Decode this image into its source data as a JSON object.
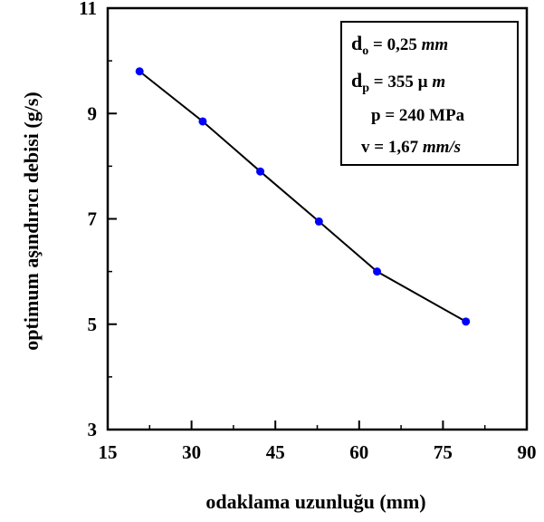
{
  "chart_data": {
    "type": "line",
    "title": "",
    "xlabel": "odaklama uzunluğu (mm)",
    "ylabel": "optimum aşındırıcı debisi (g/s)",
    "xlim": [
      15,
      90
    ],
    "ylim": [
      3,
      11
    ],
    "xticks": [
      "15",
      "30",
      "45",
      "60",
      "75",
      "90"
    ],
    "yticks": [
      "3",
      "5",
      "7",
      "9",
      "11"
    ],
    "grid": false,
    "legend_position": "top-right",
    "series": [
      {
        "x": [
          20.7,
          32,
          42.3,
          52.8,
          63.2,
          79.1
        ],
        "y": [
          9.8,
          8.85,
          7.9,
          6.95,
          6.0,
          5.05
        ],
        "marker_color": "#0000ff",
        "line_color": "#000000"
      }
    ],
    "annotation_box": [
      {
        "label": "d",
        "sub": "o",
        "rest": " = 0,25 ",
        "unit": "mm"
      },
      {
        "label": "d",
        "sub": "p",
        "rest": " = 355 µ ",
        "unit": "m"
      },
      {
        "label": "",
        "sub": "",
        "rest": "p = 240 MPa",
        "unit": ""
      },
      {
        "label": "",
        "sub": "",
        "rest": "v  = 1,67 ",
        "unit": "mm/s"
      }
    ]
  }
}
